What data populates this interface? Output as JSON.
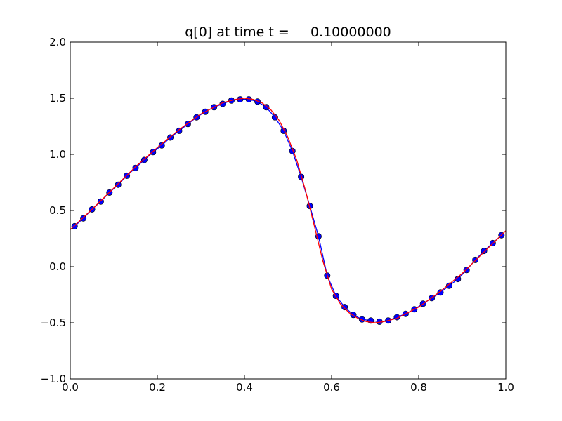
{
  "chart_data": {
    "type": "line",
    "title": "q[0] at time t =     0.10000000",
    "xlabel": "",
    "ylabel": "",
    "xlim": [
      0.0,
      1.0
    ],
    "ylim": [
      -1.0,
      2.0
    ],
    "grid": false,
    "x_ticks": [
      0.0,
      0.2,
      0.4,
      0.6,
      0.8,
      1.0
    ],
    "x_tick_labels": [
      "0.0",
      "0.2",
      "0.4",
      "0.6",
      "0.8",
      "1.0"
    ],
    "y_ticks": [
      -1.0,
      -0.5,
      0.0,
      0.5,
      1.0,
      1.5,
      2.0
    ],
    "y_tick_labels": [
      "−1.0",
      "−0.5",
      "0.0",
      "0.5",
      "1.0",
      "1.5",
      "2.0"
    ],
    "series": [
      {
        "color": "#0000ff",
        "marker": "circle",
        "x": [
          0.01,
          0.03,
          0.05,
          0.07,
          0.09,
          0.11,
          0.13,
          0.15,
          0.17,
          0.19,
          0.21,
          0.23,
          0.25,
          0.27,
          0.29,
          0.31,
          0.33,
          0.35,
          0.37,
          0.39,
          0.41,
          0.43,
          0.45,
          0.47,
          0.49,
          0.51,
          0.53,
          0.55,
          0.57,
          0.59,
          0.61,
          0.63,
          0.65,
          0.67,
          0.69,
          0.71,
          0.73,
          0.75,
          0.77,
          0.79,
          0.81,
          0.83,
          0.85,
          0.87,
          0.89,
          0.91,
          0.93,
          0.95,
          0.97,
          0.99
        ],
        "y": [
          0.36,
          0.43,
          0.51,
          0.58,
          0.66,
          0.73,
          0.81,
          0.88,
          0.95,
          1.02,
          1.08,
          1.15,
          1.21,
          1.27,
          1.33,
          1.38,
          1.42,
          1.45,
          1.48,
          1.49,
          1.49,
          1.47,
          1.42,
          1.33,
          1.21,
          1.03,
          0.8,
          0.54,
          0.27,
          -0.08,
          -0.26,
          -0.36,
          -0.43,
          -0.47,
          -0.48,
          -0.49,
          -0.48,
          -0.45,
          -0.42,
          -0.38,
          -0.33,
          -0.28,
          -0.23,
          -0.17,
          -0.11,
          -0.03,
          0.06,
          0.14,
          0.21,
          0.28
        ]
      },
      {
        "color": "#ff0000",
        "marker": "none",
        "x": [
          0.0,
          0.05,
          0.1,
          0.15,
          0.2,
          0.25,
          0.3,
          0.35,
          0.38,
          0.4,
          0.42,
          0.44,
          0.46,
          0.48,
          0.5,
          0.52,
          0.54,
          0.56,
          0.58,
          0.6,
          0.62,
          0.64,
          0.66,
          0.68,
          0.7,
          0.72,
          0.75,
          0.8,
          0.85,
          0.9,
          0.95,
          1.0
        ],
        "y": [
          0.33,
          0.51,
          0.7,
          0.89,
          1.06,
          1.22,
          1.36,
          1.46,
          1.49,
          1.5,
          1.49,
          1.46,
          1.4,
          1.3,
          1.15,
          0.95,
          0.68,
          0.37,
          0.05,
          -0.2,
          -0.33,
          -0.41,
          -0.46,
          -0.49,
          -0.5,
          -0.49,
          -0.46,
          -0.36,
          -0.22,
          -0.06,
          0.13,
          0.32
        ]
      }
    ]
  }
}
